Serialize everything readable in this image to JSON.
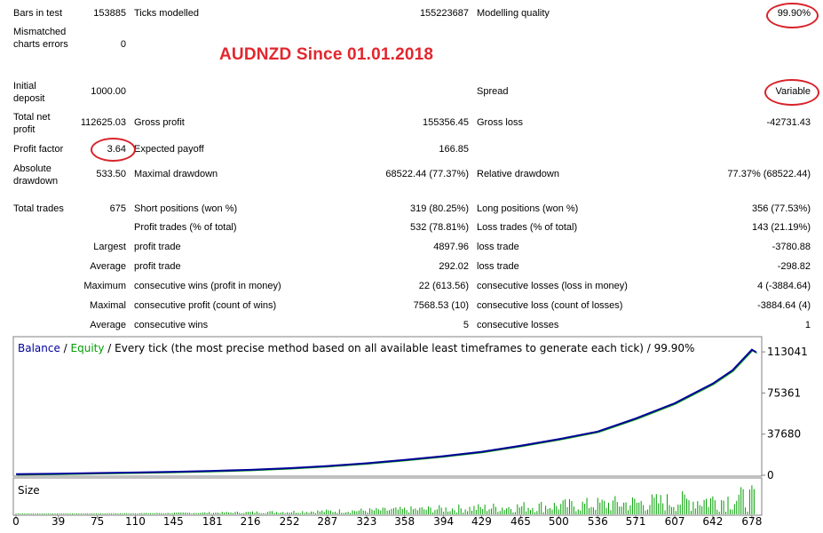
{
  "title_overlay": "AUDNZD Since 01.01.2018",
  "report": {
    "bars_in_test_label": "Bars in test",
    "bars_in_test": "153885",
    "ticks_modelled_label": "Ticks modelled",
    "ticks_modelled": "155223687",
    "modelling_quality_label": "Modelling quality",
    "modelling_quality": "99.90%",
    "mismatched_label": "Mismatched charts errors",
    "mismatched": "0",
    "initial_deposit_label": "Initial deposit",
    "initial_deposit": "1000.00",
    "spread_label": "Spread",
    "spread": "Variable",
    "total_net_profit_label": "Total net profit",
    "total_net_profit": "112625.03",
    "gross_profit_label": "Gross profit",
    "gross_profit": "155356.45",
    "gross_loss_label": "Gross loss",
    "gross_loss": "-42731.43",
    "profit_factor_label": "Profit factor",
    "profit_factor": "3.64",
    "expected_payoff_label": "Expected payoff",
    "expected_payoff": "166.85",
    "absolute_drawdown_label": "Absolute drawdown",
    "absolute_drawdown": "533.50",
    "maximal_drawdown_label": "Maximal drawdown",
    "maximal_drawdown": "68522.44 (77.37%)",
    "relative_drawdown_label": "Relative drawdown",
    "relative_drawdown": "77.37% (68522.44)",
    "total_trades_label": "Total trades",
    "total_trades": "675",
    "short_positions_label": "Short positions (won %)",
    "short_positions": "319 (80.25%)",
    "long_positions_label": "Long positions (won %)",
    "long_positions": "356 (77.53%)",
    "profit_trades_label": "Profit trades (% of total)",
    "profit_trades": "532 (78.81%)",
    "loss_trades_label": "Loss trades (% of total)",
    "loss_trades": "143 (21.19%)",
    "largest_label": "Largest",
    "largest_profit_label": "profit trade",
    "largest_profit": "4897.96",
    "largest_loss_label": "loss trade",
    "largest_loss": "-3780.88",
    "average_label": "Average",
    "average_profit_label": "profit trade",
    "average_profit": "292.02",
    "average_loss_label": "loss trade",
    "average_loss": "-298.82",
    "maximum_label": "Maximum",
    "max_cons_wins_label": "consecutive wins (profit in money)",
    "max_cons_wins": "22 (613.56)",
    "max_cons_losses_label": "consecutive losses (loss in money)",
    "max_cons_losses": "4 (-3884.64)",
    "maximal_label": "Maximal",
    "maximal_cons_profit_label": "consecutive profit (count of wins)",
    "maximal_cons_profit": "7568.53 (10)",
    "maximal_cons_loss_label": "consecutive loss (count of losses)",
    "maximal_cons_loss": "-3884.64 (4)",
    "average2_label": "Average",
    "avg_cons_wins_label": "consecutive wins",
    "avg_cons_wins": "5",
    "avg_cons_losses_label": "consecutive losses",
    "avg_cons_losses": "1"
  },
  "chart_header": {
    "balance": "Balance",
    "sep": " / ",
    "equity": "Equity",
    "rest": " / Every tick (the most precise method based on all available least timeframes to generate each tick) / 99.90%"
  },
  "size_label": "Size",
  "chart_data": {
    "type": "line",
    "series": [
      {
        "name": "Balance",
        "color": "#00009c",
        "x": [
          0,
          39,
          75,
          110,
          145,
          181,
          216,
          252,
          287,
          323,
          358,
          394,
          429,
          465,
          500,
          536,
          571,
          607,
          642,
          660,
          678,
          682
        ],
        "y": [
          1000,
          1500,
          2000,
          2500,
          3200,
          4000,
          5000,
          6500,
          8500,
          11000,
          14000,
          17500,
          21500,
          27000,
          33000,
          40000,
          52000,
          66000,
          84000,
          96000,
          115000,
          112625
        ]
      },
      {
        "name": "Equity",
        "color": "#00a000"
      }
    ],
    "y_ticks": [
      0,
      37680,
      75361,
      113041
    ],
    "ylim": [
      0,
      118000
    ],
    "x_ticks": [
      0,
      39,
      75,
      110,
      145,
      181,
      216,
      252,
      287,
      323,
      358,
      394,
      429,
      465,
      500,
      536,
      571,
      607,
      642,
      678
    ],
    "xlim": [
      0,
      683
    ],
    "size_color": "#00a000"
  }
}
